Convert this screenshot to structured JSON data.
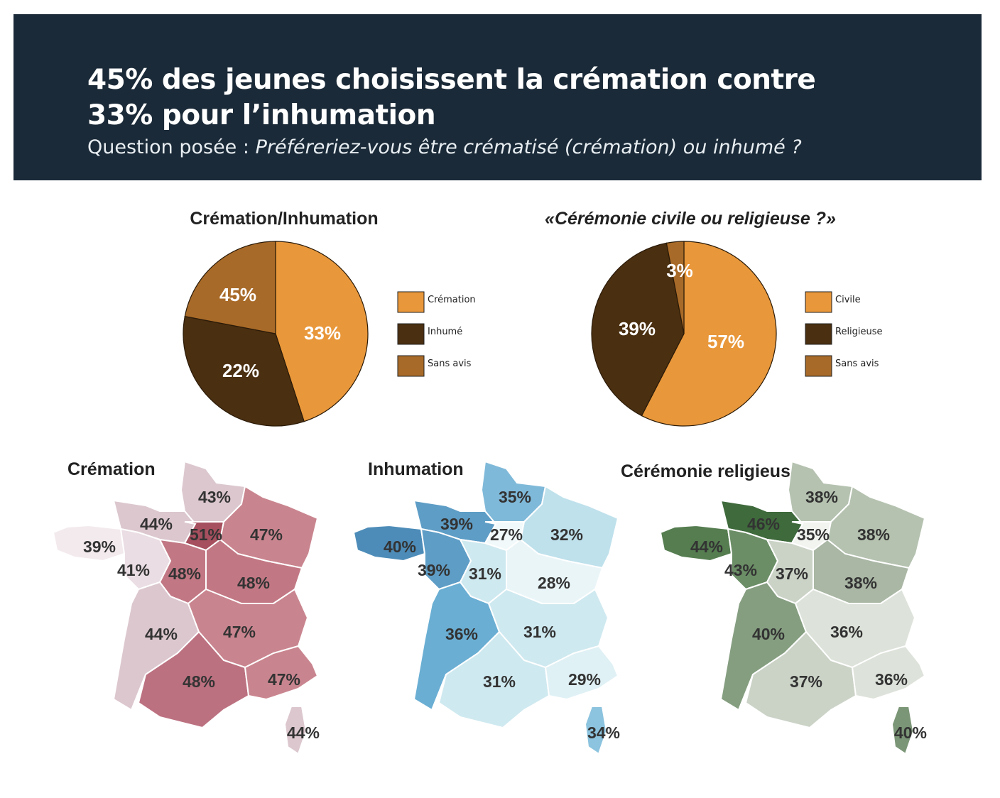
{
  "header": {
    "title_line1": "45% des jeunes choisissent la crémation contre",
    "title_line2": "33% pour l’inhumation",
    "question_label": "Question posée : ",
    "question_text": "Préféreriez-vous être crématisé (crémation) ou inhumé ?"
  },
  "chart_data": [
    {
      "type": "pie",
      "title": "Crémation/Inhumation",
      "start": "top",
      "direction": "clockwise",
      "slices": [
        {
          "label": "Crémation",
          "value": 45,
          "display": "45%",
          "color": "#e8973a"
        },
        {
          "label": "Inhumé",
          "value": 33,
          "display": "33%",
          "color": "#4a2f10"
        },
        {
          "label": "Sans avis",
          "value": 22,
          "display": "22%",
          "color": "#a86a28"
        }
      ]
    },
    {
      "type": "pie",
      "title": "«Cérémonie civile ou religieuse ?»",
      "start": "top",
      "direction": "clockwise",
      "slices": [
        {
          "label": "Civile",
          "value": 57,
          "display": "57%",
          "color": "#e8973a"
        },
        {
          "label": "Religieuse",
          "value": 39,
          "display": "39%",
          "color": "#4a2f10"
        },
        {
          "label": "Sans avis",
          "value": 3,
          "display": "3%",
          "color": "#a86a28"
        }
      ]
    },
    {
      "type": "choropleth",
      "title": "Crémation",
      "regions": {
        "nord": {
          "value": "43%",
          "color": "#dcc7cf"
        },
        "normandie": {
          "value": "44%",
          "color": "#dcc7cf"
        },
        "idf": {
          "value": "51%",
          "color": "#a64f5e"
        },
        "est": {
          "value": "47%",
          "color": "#c9858f"
        },
        "bretagne": {
          "value": "39%",
          "color": "#f3eaee"
        },
        "pdl": {
          "value": "41%",
          "color": "#eadde3"
        },
        "centre": {
          "value": "48%",
          "color": "#c27884"
        },
        "bourgogne": {
          "value": "48%",
          "color": "#c27884"
        },
        "so": {
          "value": "44%",
          "color": "#dcc7cf"
        },
        "ra": {
          "value": "47%",
          "color": "#c9858f"
        },
        "midi": {
          "value": "48%",
          "color": "#bc7180"
        },
        "paca": {
          "value": "47%",
          "color": "#c9858f"
        },
        "corse": {
          "value": "44%",
          "color": "#dcc7cf"
        }
      }
    },
    {
      "type": "choropleth",
      "title": "Inhumation",
      "regions": {
        "nord": {
          "value": "35%",
          "color": "#7fb9d9"
        },
        "normandie": {
          "value": "39%",
          "color": "#5e9dc6"
        },
        "idf": {
          "value": "27%",
          "color": "#f2f9fb"
        },
        "est": {
          "value": "32%",
          "color": "#bfe1ec"
        },
        "bretagne": {
          "value": "40%",
          "color": "#4d8cb8"
        },
        "pdl": {
          "value": "39%",
          "color": "#5e9dc6"
        },
        "centre": {
          "value": "31%",
          "color": "#cfe9f0"
        },
        "bourgogne": {
          "value": "28%",
          "color": "#eaf5f8"
        },
        "so": {
          "value": "36%",
          "color": "#6aaed3"
        },
        "ra": {
          "value": "31%",
          "color": "#cfe9f0"
        },
        "midi": {
          "value": "31%",
          "color": "#cfe9f0"
        },
        "paca": {
          "value": "29%",
          "color": "#e0f1f5"
        },
        "corse": {
          "value": "34%",
          "color": "#8cc3de"
        }
      }
    },
    {
      "type": "choropleth",
      "title": "Cérémonie religieuse",
      "regions": {
        "nord": {
          "value": "38%",
          "color": "#b5c2b0"
        },
        "normandie": {
          "value": "46%",
          "color": "#3f6a3c"
        },
        "idf": {
          "value": "35%",
          "color": "#f2f4f0"
        },
        "est": {
          "value": "38%",
          "color": "#b5c2b0"
        },
        "bretagne": {
          "value": "44%",
          "color": "#557d50"
        },
        "pdl": {
          "value": "43%",
          "color": "#6b8e66"
        },
        "centre": {
          "value": "37%",
          "color": "#cbd3c7"
        },
        "bourgogne": {
          "value": "38%",
          "color": "#a9b7a4"
        },
        "so": {
          "value": "40%",
          "color": "#859e80"
        },
        "ra": {
          "value": "36%",
          "color": "#dde3da"
        },
        "midi": {
          "value": "37%",
          "color": "#cbd3c7"
        },
        "paca": {
          "value": "36%",
          "color": "#dde3da"
        },
        "corse": {
          "value": "40%",
          "color": "#7b9676"
        }
      }
    }
  ]
}
